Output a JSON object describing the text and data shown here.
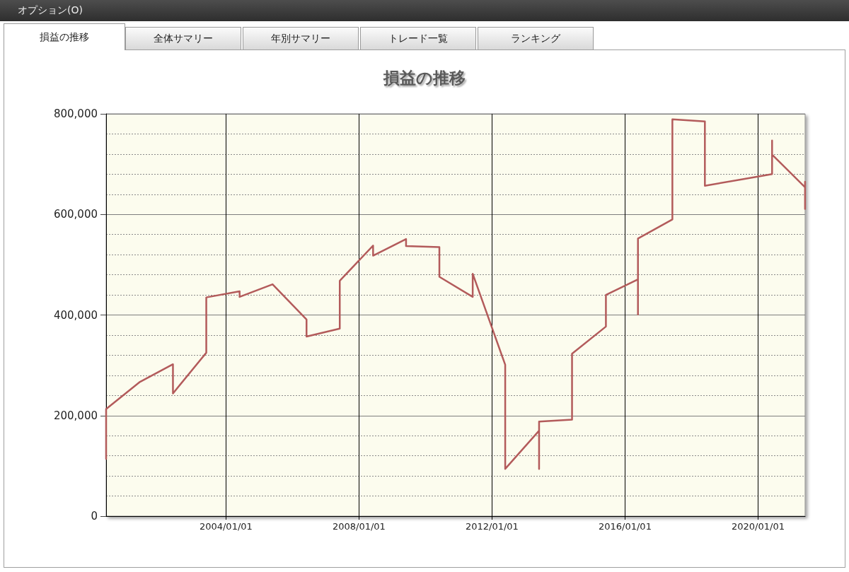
{
  "chart_data": {
    "type": "line",
    "title": "損益の推移",
    "annotations": [
      "オプション(O)",
      "損益の推移",
      "全体サマリー",
      "年別サマリー",
      "トレード一覧",
      "ランキング"
    ],
    "x": [
      "2000-05-25",
      "2000-05-25",
      "2001-06-01",
      "2002-05-29",
      "2002-05-29",
      "2003-05-30",
      "2003-05-30",
      "2004-05-30",
      "2004-05-30",
      "2005-05-27",
      "2006-06-04",
      "2006-06-04",
      "2007-06-04",
      "2007-06-04",
      "2008-06-04",
      "2008-06-04",
      "2009-06-01",
      "2009-06-01",
      "2010-06-02",
      "2010-06-02",
      "2011-06-03",
      "2011-06-03",
      "2012-05-25",
      "2012-05-25",
      "2013-06-01",
      "2013-06-01",
      "2013-06-01",
      "2014-05-29",
      "2014-05-29",
      "2015-06-05",
      "2015-06-05",
      "2016-05-22",
      "2016-05-22",
      "2016-05-22",
      "2017-06-04",
      "2017-06-04",
      "2018-05-27",
      "2018-05-27",
      "2020-06-03",
      "2020-06-03",
      "2020-06-03",
      "2021-05-31",
      "2021-05-31",
      "2021-05-31"
    ],
    "values": [
      114000,
      213000,
      267000,
      302000,
      244000,
      325000,
      435000,
      447000,
      436000,
      461000,
      391000,
      357000,
      373000,
      468000,
      538000,
      518000,
      551000,
      537000,
      535000,
      476000,
      436000,
      482000,
      301000,
      94000,
      170000,
      94000,
      188000,
      192000,
      323000,
      377000,
      440000,
      471000,
      401000,
      552000,
      590000,
      789000,
      785000,
      657000,
      680000,
      747000,
      719000,
      654000,
      611000,
      665000
    ],
    "color": "#b35b5b",
    "xlim": [
      "2000-05-25",
      "2021-06-01"
    ],
    "xticks": [
      {
        "value": "2004-01-01",
        "label": "2004/01/01"
      },
      {
        "value": "2008-01-01",
        "label": "2008/01/01"
      },
      {
        "value": "2012-01-01",
        "label": "2012/01/01"
      },
      {
        "value": "2016-01-01",
        "label": "2016/01/01"
      },
      {
        "value": "2020-01-01",
        "label": "2020/01/01"
      }
    ],
    "ylim": [
      0,
      800000
    ],
    "yticks": [
      0,
      {
        "value": 40000,
        "label": null
      },
      {
        "value": 80000,
        "label": null
      },
      {
        "value": 120000,
        "label": null
      },
      {
        "value": 160000,
        "label": null
      },
      {
        "value": 200000,
        "label": "200,000"
      },
      {
        "value": 240000,
        "label": null
      },
      {
        "value": 280000,
        "label": null
      },
      {
        "value": 320000,
        "label": null
      },
      {
        "value": 360000,
        "label": null
      },
      {
        "value": 400000,
        "label": "400,000"
      },
      {
        "value": 440000,
        "label": null
      },
      {
        "value": 480000,
        "label": null
      },
      {
        "value": 520000,
        "label": null
      },
      {
        "value": 560000,
        "label": null
      },
      {
        "value": 600000,
        "label": "600,000"
      },
      {
        "value": 640000,
        "label": null
      },
      {
        "value": 680000,
        "label": null
      },
      {
        "value": 720000,
        "label": null
      },
      {
        "value": 760000,
        "label": null
      },
      {
        "value": 800000,
        "label": "800,000"
      }
    ],
    "grid": true,
    "marker": "none",
    "line_style": "solid"
  }
}
